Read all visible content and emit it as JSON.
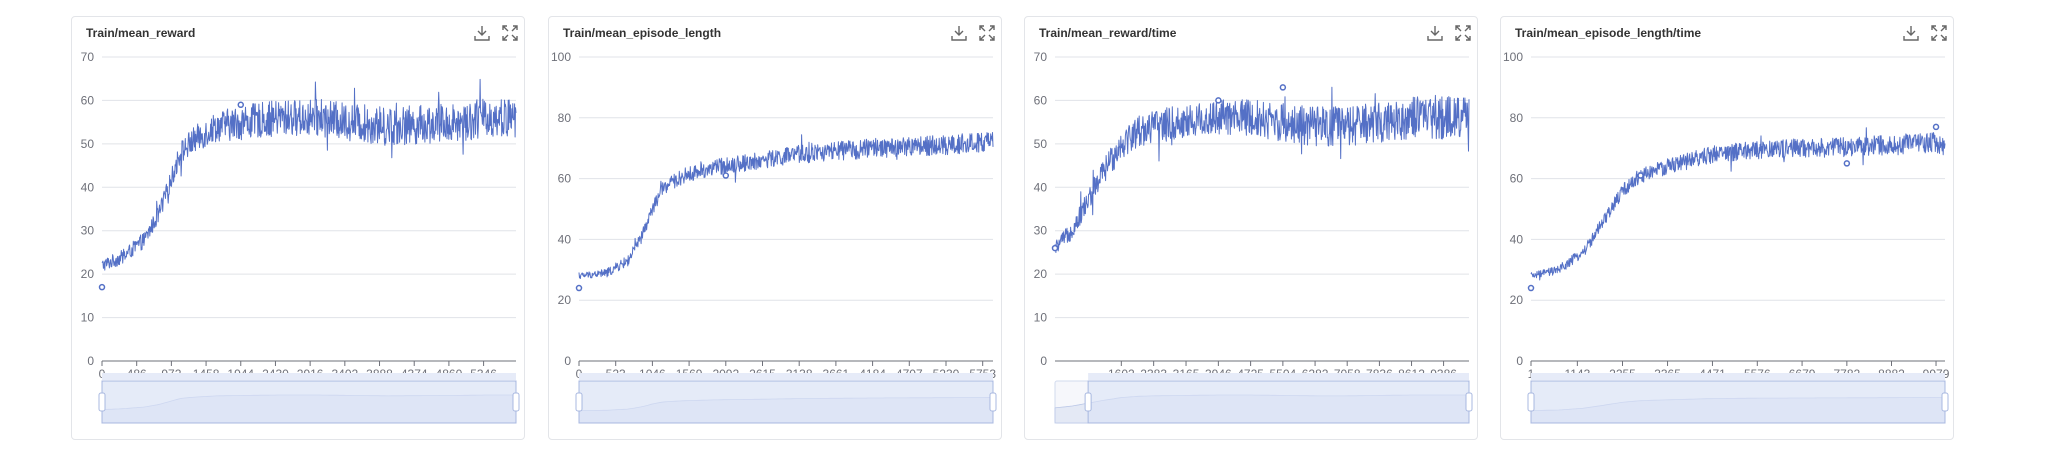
{
  "colors": {
    "series": "#5470c6",
    "grid": "#e0e3e8",
    "axis": "#6e7079",
    "zoom_fill": "#dbe3f6"
  },
  "icons": {
    "download": "download-icon",
    "fullscreen": "fullscreen-icon"
  },
  "chart_data": [
    {
      "type": "line",
      "title": "Train/mean_reward",
      "xlabel": "",
      "ylabel": "",
      "x_range": [
        0,
        5800
      ],
      "ylim": [
        0,
        70
      ],
      "y_ticks": [
        0,
        10,
        20,
        30,
        40,
        50,
        60,
        70
      ],
      "x_ticks": [
        0,
        486,
        972,
        1458,
        1944,
        2430,
        2916,
        3402,
        3888,
        4374,
        4860,
        5346
      ],
      "curve": [
        [
          0,
          22
        ],
        [
          300,
          24
        ],
        [
          600,
          28
        ],
        [
          800,
          34
        ],
        [
          972,
          42
        ],
        [
          1100,
          48
        ],
        [
          1300,
          51
        ],
        [
          1600,
          54
        ],
        [
          2000,
          55
        ],
        [
          2500,
          56
        ],
        [
          3000,
          56
        ],
        [
          3500,
          55
        ],
        [
          4000,
          54
        ],
        [
          4500,
          54.5
        ],
        [
          5000,
          55
        ],
        [
          5400,
          56
        ],
        [
          5800,
          56
        ]
      ],
      "noise": [
        [
          0,
          1.5
        ],
        [
          900,
          2
        ],
        [
          1200,
          3
        ],
        [
          2000,
          4
        ],
        [
          4000,
          4.5
        ],
        [
          5800,
          4.5
        ]
      ],
      "marked_points": [
        [
          0,
          17
        ],
        [
          1944,
          59
        ]
      ],
      "grid": true,
      "zoom_range": [
        0,
        100
      ]
    },
    {
      "type": "line",
      "title": "Train/mean_episode_length",
      "xlabel": "",
      "ylabel": "",
      "x_range": [
        0,
        5900
      ],
      "ylim": [
        0,
        100
      ],
      "y_ticks": [
        0,
        20,
        40,
        60,
        80,
        100
      ],
      "x_ticks": [
        0,
        523,
        1046,
        1569,
        2092,
        2615,
        3138,
        3661,
        4184,
        4707,
        5230,
        5753
      ],
      "curve": [
        [
          0,
          28
        ],
        [
          400,
          29
        ],
        [
          700,
          33
        ],
        [
          900,
          41
        ],
        [
          1046,
          50
        ],
        [
          1200,
          57
        ],
        [
          1500,
          61
        ],
        [
          2000,
          64
        ],
        [
          2615,
          66
        ],
        [
          3138,
          68
        ],
        [
          3661,
          69
        ],
        [
          4184,
          70
        ],
        [
          4707,
          70.5
        ],
        [
          5230,
          71
        ],
        [
          5900,
          72
        ]
      ],
      "noise": [
        [
          0,
          1
        ],
        [
          900,
          2
        ],
        [
          1500,
          2.5
        ],
        [
          3000,
          3
        ],
        [
          5900,
          3.5
        ]
      ],
      "marked_points": [
        [
          0,
          24
        ],
        [
          2092,
          61
        ]
      ],
      "grid": true,
      "zoom_range": [
        0,
        100
      ]
    },
    {
      "type": "line",
      "title": "Train/mean_reward/time",
      "xlabel": "",
      "ylabel": "",
      "x_range": [
        0,
        10000
      ],
      "ylim": [
        0,
        70
      ],
      "y_ticks": [
        0,
        10,
        20,
        30,
        40,
        50,
        60,
        70
      ],
      "x_ticks": [
        1602,
        2383,
        3165,
        3946,
        4725,
        5504,
        6282,
        7058,
        7836,
        8612,
        9386
      ],
      "curve": [
        [
          0,
          26
        ],
        [
          400,
          30
        ],
        [
          800,
          37
        ],
        [
          1200,
          44
        ],
        [
          1602,
          50
        ],
        [
          2000,
          53
        ],
        [
          2383,
          54
        ],
        [
          3165,
          55
        ],
        [
          3946,
          56
        ],
        [
          4725,
          56
        ],
        [
          5504,
          55
        ],
        [
          6282,
          54
        ],
        [
          7058,
          54
        ],
        [
          7836,
          55
        ],
        [
          8612,
          56
        ],
        [
          9386,
          56
        ],
        [
          10000,
          56
        ]
      ],
      "noise": [
        [
          0,
          1.5
        ],
        [
          1000,
          3
        ],
        [
          2500,
          4
        ],
        [
          6000,
          4.5
        ],
        [
          10000,
          5
        ]
      ],
      "marked_points": [
        [
          0,
          26
        ],
        [
          3946,
          60
        ],
        [
          5504,
          63
        ]
      ],
      "grid": true,
      "zoom_range": [
        8,
        100
      ]
    },
    {
      "type": "line",
      "title": "Train/mean_episode_length/time",
      "xlabel": "",
      "ylabel": "",
      "x_range": [
        1,
        10200
      ],
      "ylim": [
        0,
        100
      ],
      "y_ticks": [
        0,
        20,
        40,
        60,
        80,
        100
      ],
      "x_ticks": [
        1,
        1143,
        2255,
        3365,
        4471,
        5576,
        6679,
        7782,
        8882,
        9979
      ],
      "curve": [
        [
          1,
          28
        ],
        [
          700,
          30
        ],
        [
          1300,
          36
        ],
        [
          1800,
          46
        ],
        [
          2255,
          56
        ],
        [
          2700,
          61
        ],
        [
          3365,
          64
        ],
        [
          4471,
          68
        ],
        [
          5576,
          69.5
        ],
        [
          6679,
          70
        ],
        [
          7782,
          70.5
        ],
        [
          8882,
          71
        ],
        [
          9979,
          72
        ],
        [
          10200,
          71
        ]
      ],
      "noise": [
        [
          1,
          1
        ],
        [
          1500,
          2
        ],
        [
          2500,
          2.5
        ],
        [
          5000,
          3
        ],
        [
          10200,
          3.5
        ]
      ],
      "marked_points": [
        [
          1,
          24
        ],
        [
          2700,
          61
        ],
        [
          7782,
          65
        ],
        [
          9979,
          77
        ]
      ],
      "grid": true,
      "zoom_range": [
        0,
        100
      ]
    }
  ]
}
